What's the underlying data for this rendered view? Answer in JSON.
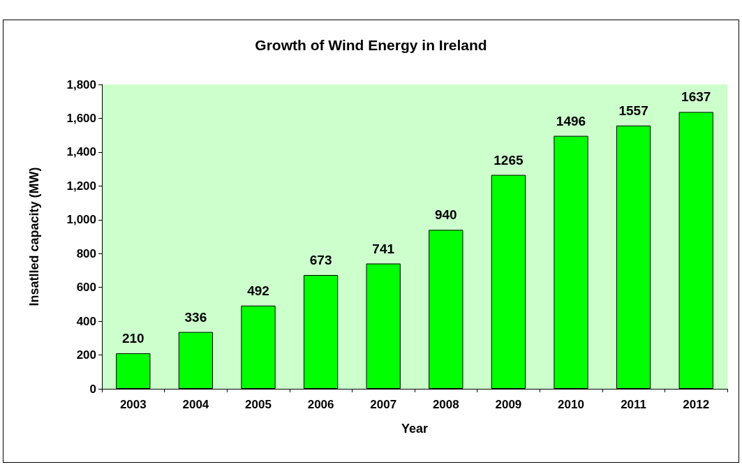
{
  "chart_data": {
    "type": "bar",
    "title": "Growth of Wind Energy in Ireland",
    "xlabel": "Year",
    "ylabel": "Insatlled capacity (MW)",
    "categories": [
      "2003",
      "2004",
      "2005",
      "2006",
      "2007",
      "2008",
      "2009",
      "2010",
      "2011",
      "2012"
    ],
    "values": [
      210,
      336,
      492,
      673,
      741,
      940,
      1265,
      1496,
      1557,
      1637
    ],
    "color": "#00ff00",
    "ylim": [
      0,
      1800
    ],
    "yticks": [
      0,
      200,
      400,
      600,
      800,
      {
        "value": 1000,
        "label": "1,000"
      },
      {
        "value": 1200,
        "label": "1,200"
      },
      {
        "value": 1400,
        "label": "1,400"
      },
      {
        "value": 1600,
        "label": "1,600"
      },
      {
        "value": 1800,
        "label": "1,800"
      }
    ],
    "grid": false,
    "data_labels": true
  }
}
